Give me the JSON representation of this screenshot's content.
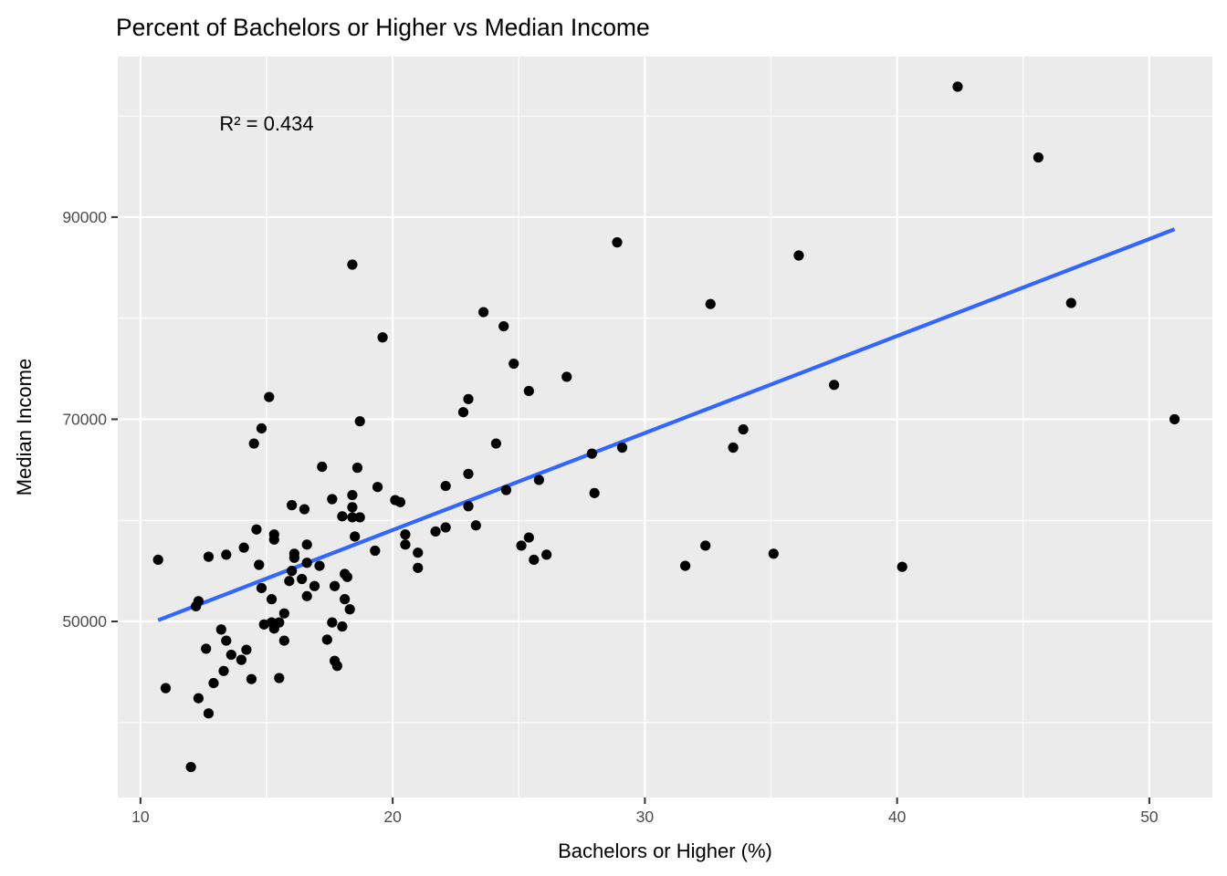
{
  "chart_data": {
    "type": "scatter",
    "title": "Percent of Bachelors or Higher vs Median Income",
    "xlabel": "Bachelors or Higher (%)",
    "ylabel": "Median Income",
    "xlim": [
      9.1,
      52.5
    ],
    "ylim": [
      32580,
      105880
    ],
    "x_ticks": [
      10,
      20,
      30,
      40,
      50
    ],
    "y_ticks": [
      50000,
      70000,
      90000
    ],
    "x_tick_labels": [
      "10",
      "20",
      "30",
      "40",
      "50"
    ],
    "y_tick_labels": [
      "50000",
      "70000",
      "90000"
    ],
    "grid": true,
    "legend": "none",
    "annotation": {
      "text": "R² = 0.434",
      "x": 15,
      "y": 99300
    },
    "colors": {
      "panel_background": "#EBEBEB",
      "grid": "#FFFFFF",
      "points": "#000000",
      "fit_line": "#3366FF"
    },
    "fit_line": {
      "x": [
        10.7,
        51.0
      ],
      "y": [
        50120,
        88800
      ]
    },
    "series": [
      {
        "points": [
          [
            10.7,
            56100
          ],
          [
            11.0,
            43400
          ],
          [
            12.0,
            35600
          ],
          [
            12.2,
            51500
          ],
          [
            12.3,
            52000
          ],
          [
            12.3,
            42400
          ],
          [
            12.6,
            47300
          ],
          [
            12.7,
            56400
          ],
          [
            12.7,
            40900
          ],
          [
            12.9,
            43900
          ],
          [
            13.2,
            49200
          ],
          [
            13.3,
            45100
          ],
          [
            13.4,
            48100
          ],
          [
            13.4,
            56600
          ],
          [
            13.6,
            46700
          ],
          [
            14.0,
            46200
          ],
          [
            14.1,
            57300
          ],
          [
            14.2,
            47200
          ],
          [
            14.4,
            44300
          ],
          [
            14.5,
            67600
          ],
          [
            14.6,
            59100
          ],
          [
            14.7,
            55600
          ],
          [
            14.8,
            53300
          ],
          [
            14.8,
            69100
          ],
          [
            14.9,
            49700
          ],
          [
            15.1,
            72200
          ],
          [
            15.2,
            49900
          ],
          [
            15.2,
            52200
          ],
          [
            15.3,
            49300
          ],
          [
            15.3,
            58100
          ],
          [
            15.3,
            58600
          ],
          [
            15.5,
            44400
          ],
          [
            15.5,
            49900
          ],
          [
            15.7,
            50800
          ],
          [
            15.7,
            48100
          ],
          [
            15.9,
            54000
          ],
          [
            16.0,
            55000
          ],
          [
            16.0,
            61500
          ],
          [
            16.1,
            56300
          ],
          [
            16.1,
            56700
          ],
          [
            16.4,
            54200
          ],
          [
            16.5,
            61100
          ],
          [
            16.6,
            52500
          ],
          [
            16.6,
            57600
          ],
          [
            16.6,
            55800
          ],
          [
            16.9,
            53500
          ],
          [
            17.1,
            55500
          ],
          [
            17.2,
            65300
          ],
          [
            17.4,
            48200
          ],
          [
            17.6,
            49900
          ],
          [
            17.6,
            62100
          ],
          [
            17.7,
            53500
          ],
          [
            17.7,
            46100
          ],
          [
            17.8,
            45600
          ],
          [
            18.0,
            49500
          ],
          [
            18.0,
            60400
          ],
          [
            18.1,
            52200
          ],
          [
            18.1,
            54700
          ],
          [
            18.2,
            54400
          ],
          [
            18.3,
            51200
          ],
          [
            18.4,
            60300
          ],
          [
            18.4,
            62500
          ],
          [
            18.4,
            61300
          ],
          [
            18.4,
            85300
          ],
          [
            18.5,
            58400
          ],
          [
            18.6,
            65200
          ],
          [
            18.7,
            60300
          ],
          [
            18.7,
            69800
          ],
          [
            19.3,
            57000
          ],
          [
            19.4,
            63300
          ],
          [
            19.6,
            78100
          ],
          [
            20.1,
            62000
          ],
          [
            20.3,
            61800
          ],
          [
            20.5,
            57600
          ],
          [
            20.5,
            58600
          ],
          [
            21.0,
            56800
          ],
          [
            21.0,
            55300
          ],
          [
            21.7,
            58900
          ],
          [
            22.1,
            63400
          ],
          [
            22.1,
            59300
          ],
          [
            22.8,
            70700
          ],
          [
            23.0,
            72000
          ],
          [
            23.0,
            64600
          ],
          [
            23.0,
            61400
          ],
          [
            23.3,
            59500
          ],
          [
            23.6,
            80600
          ],
          [
            24.1,
            67600
          ],
          [
            24.4,
            79200
          ],
          [
            24.5,
            63000
          ],
          [
            24.8,
            75500
          ],
          [
            25.1,
            57500
          ],
          [
            25.4,
            72800
          ],
          [
            25.4,
            58300
          ],
          [
            25.6,
            56100
          ],
          [
            25.8,
            64000
          ],
          [
            26.1,
            56600
          ],
          [
            26.9,
            74200
          ],
          [
            27.9,
            66600
          ],
          [
            28.0,
            62700
          ],
          [
            28.9,
            87500
          ],
          [
            29.1,
            67200
          ],
          [
            31.6,
            55500
          ],
          [
            32.4,
            57500
          ],
          [
            32.6,
            81400
          ],
          [
            33.5,
            67200
          ],
          [
            33.9,
            69000
          ],
          [
            35.1,
            56700
          ],
          [
            36.1,
            86200
          ],
          [
            37.5,
            73400
          ],
          [
            40.2,
            55400
          ],
          [
            42.4,
            102900
          ],
          [
            45.6,
            95900
          ],
          [
            46.9,
            81500
          ],
          [
            51.0,
            70000
          ]
        ]
      }
    ]
  }
}
